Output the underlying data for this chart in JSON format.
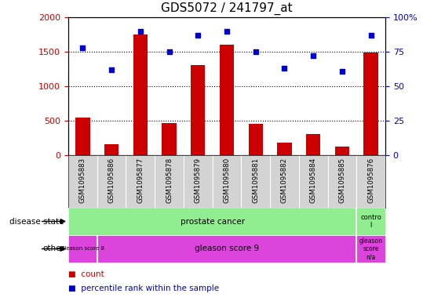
{
  "title": "GDS5072 / 241797_at",
  "samples": [
    "GSM1095883",
    "GSM1095886",
    "GSM1095877",
    "GSM1095878",
    "GSM1095879",
    "GSM1095880",
    "GSM1095881",
    "GSM1095882",
    "GSM1095884",
    "GSM1095885",
    "GSM1095876"
  ],
  "counts": [
    540,
    160,
    1750,
    470,
    1310,
    1600,
    460,
    185,
    310,
    130,
    1490
  ],
  "percentiles": [
    78,
    62,
    90,
    75,
    87,
    90,
    75,
    63,
    72,
    61,
    87
  ],
  "bar_color": "#cc0000",
  "dot_color": "#0000cc",
  "ylim_left": [
    0,
    2000
  ],
  "ylim_right": [
    0,
    100
  ],
  "yticks_left": [
    0,
    500,
    1000,
    1500,
    2000
  ],
  "yticks_right": [
    0,
    25,
    50,
    75,
    100
  ],
  "tick_label_color_left": "#cc0000",
  "tick_label_color_right": "#0000cc",
  "bar_color_red": "#cc0000",
  "background_color": "#ffffff",
  "gray_bg": "#d3d3d3",
  "green_bg": "#90ee90",
  "magenta_bg": "#dd44dd",
  "bar_width": 0.5,
  "title_fontsize": 11,
  "legend_items": [
    {
      "color": "#cc0000",
      "label": "count"
    },
    {
      "color": "#0000cc",
      "label": "percentile rank within the sample"
    }
  ]
}
